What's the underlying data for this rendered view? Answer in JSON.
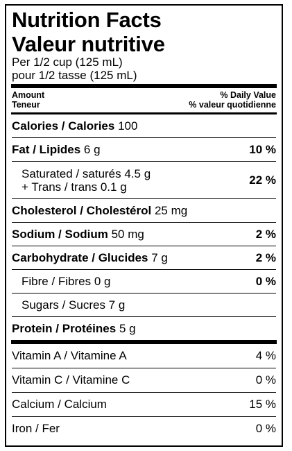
{
  "title_en": "Nutrition Facts",
  "title_fr": "Valeur nutritive",
  "serving_en": "Per 1/2 cup (125 mL)",
  "serving_fr": "pour 1/2 tasse (125 mL)",
  "header": {
    "amount_en": "Amount",
    "amount_fr": "Teneur",
    "dv_en": "% Daily Value",
    "dv_fr": "% valeur quotidienne"
  },
  "calories": {
    "label": "Calories / Calories",
    "value": "100"
  },
  "fat": {
    "label": "Fat / Lipides",
    "amount": "6 g",
    "dv": "10 %"
  },
  "saturated": {
    "line1": "Saturated / saturés 4.5 g",
    "line2": "+ Trans / trans 0.1 g",
    "dv": "22 %"
  },
  "cholesterol": {
    "label": "Cholesterol / Cholestérol",
    "amount": "25 mg"
  },
  "sodium": {
    "label": "Sodium / Sodium",
    "amount": "50 mg",
    "dv": "2 %"
  },
  "carbohydrate": {
    "label": "Carbohydrate / Glucides",
    "amount": "7 g",
    "dv": "2 %"
  },
  "fibre": {
    "label": "Fibre / Fibres 0 g",
    "dv": "0 %"
  },
  "sugars": {
    "label": "Sugars / Sucres 7 g"
  },
  "protein": {
    "label": "Protein / Protéines",
    "amount": "5 g"
  },
  "vitamins": [
    {
      "label": "Vitamin A / Vitamine A",
      "dv": "4 %"
    },
    {
      "label": "Vitamin C / Vitamine C",
      "dv": "0 %"
    },
    {
      "label": "Calcium / Calcium",
      "dv": "15 %"
    },
    {
      "label": "Iron / Fer",
      "dv": "0 %"
    }
  ]
}
